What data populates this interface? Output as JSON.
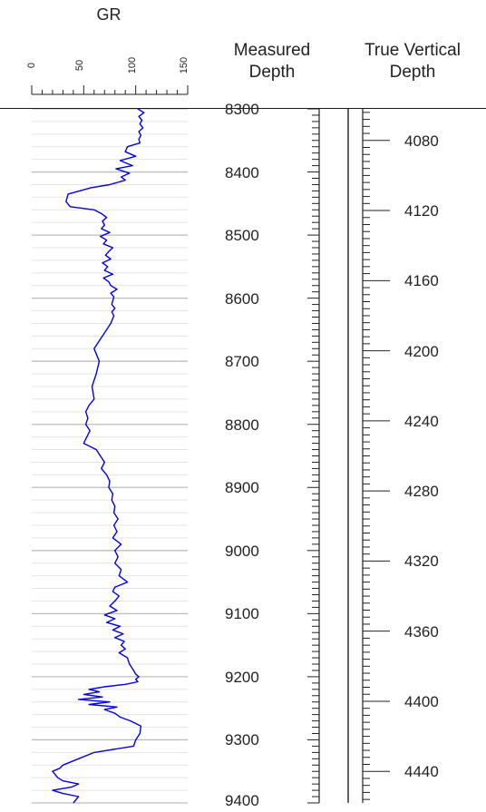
{
  "headers": {
    "gr": "GR",
    "md_line1": "Measured",
    "md_line2": "Depth",
    "tvd_line1": "True Vertical",
    "tvd_line2": "Depth"
  },
  "gr_ticks": [
    "0",
    "50",
    "100",
    "150"
  ],
  "md_labels": [
    "8300",
    "8400",
    "8500",
    "8600",
    "8700",
    "8800",
    "8900",
    "9000",
    "9100",
    "9200",
    "9300",
    "9400"
  ],
  "tvd_labels": [
    "4080",
    "4120",
    "4160",
    "4200",
    "4240",
    "4280",
    "4320",
    "4360",
    "4400",
    "4440"
  ],
  "colors": {
    "curve": "#0000ee",
    "grid_major": "#bdbdbd",
    "grid_minor": "#e4e4e4",
    "axis": "#222222"
  },
  "chart_data": {
    "type": "line",
    "title": "GR",
    "xlabel": "GR",
    "ylabel": "Measured Depth",
    "xlim": [
      0,
      150
    ],
    "ylim": [
      9400,
      8300
    ],
    "series": [
      {
        "name": "GR",
        "x": [
          102,
          108,
          103,
          106,
          104,
          107,
          103,
          105,
          103,
          104,
          92,
          90,
          100,
          85,
          97,
          81,
          94,
          86,
          90,
          75,
          57,
          35,
          33,
          37,
          60,
          67,
          72,
          68,
          70,
          67,
          75,
          66,
          72,
          69,
          78,
          74,
          71,
          76,
          68,
          73,
          70,
          78,
          69,
          74,
          76,
          82,
          76,
          79,
          78,
          77,
          80,
          77,
          79,
          76,
          70,
          64,
          60,
          65,
          62,
          58,
          60,
          55,
          52,
          54,
          52,
          56,
          53,
          50,
          62,
          66,
          70,
          67,
          72,
          75,
          74,
          78,
          77,
          80,
          79,
          83,
          79,
          82,
          78,
          86,
          80,
          83,
          80,
          86,
          84,
          92,
          80,
          78,
          84,
          80,
          75,
          82,
          70,
          80,
          72,
          85,
          78,
          88,
          80,
          89,
          86,
          90,
          84,
          92,
          94,
          98,
          100,
          103,
          100,
          102,
          90,
          70,
          55,
          65,
          50,
          68,
          45,
          75,
          55,
          82,
          70,
          80,
          85,
          95,
          105,
          104,
          100,
          98,
          60,
          45,
          30,
          27,
          20,
          25,
          30,
          45,
          38,
          20,
          30,
          45,
          40
        ],
        "y": [
          8300,
          8306,
          8312,
          8318,
          8324,
          8330,
          8336,
          8342,
          8348,
          8354,
          8360,
          8368,
          8375,
          8382,
          8390,
          8395,
          8402,
          8408,
          8413,
          8420,
          8425,
          8435,
          8447,
          8455,
          8460,
          8466,
          8472,
          8478,
          8484,
          8490,
          8496,
          8502,
          8508,
          8514,
          8520,
          8526,
          8532,
          8538,
          8544,
          8550,
          8556,
          8562,
          8568,
          8574,
          8580,
          8586,
          8592,
          8598,
          8604,
          8610,
          8616,
          8622,
          8628,
          8640,
          8655,
          8670,
          8680,
          8700,
          8720,
          8740,
          8760,
          8770,
          8780,
          8790,
          8800,
          8810,
          8820,
          8830,
          8840,
          8850,
          8860,
          8870,
          8880,
          8890,
          8900,
          8910,
          8920,
          8930,
          8940,
          8950,
          8960,
          8970,
          8980,
          8990,
          9000,
          9010,
          9020,
          9030,
          9040,
          9050,
          9058,
          9065,
          9072,
          9080,
          9088,
          9095,
          9102,
          9108,
          9114,
          9120,
          9126,
          9132,
          9138,
          9144,
          9150,
          9156,
          9162,
          9170,
          9180,
          9190,
          9196,
          9200,
          9204,
          9208,
          9212,
          9216,
          9220,
          9224,
          9228,
          9232,
          9236,
          9240,
          9244,
          9248,
          9252,
          9258,
          9264,
          9270,
          9278,
          9290,
          9300,
          9310,
          9320,
          9330,
          9340,
          9345,
          9350,
          9360,
          9365,
          9370,
          9375,
          9380,
          9385,
          9390,
          9400
        ]
      }
    ],
    "md_ticks": [
      8300,
      8400,
      8500,
      8600,
      8700,
      8800,
      8900,
      9000,
      9100,
      9200,
      9300,
      9400
    ],
    "tvd_ticks": [
      4080,
      4120,
      4160,
      4200,
      4240,
      4280,
      4320,
      4360,
      4400,
      4440
    ],
    "tvd_at_md": [
      [
        8300,
        4062
      ],
      [
        9400,
        4458
      ]
    ],
    "grid": true
  }
}
